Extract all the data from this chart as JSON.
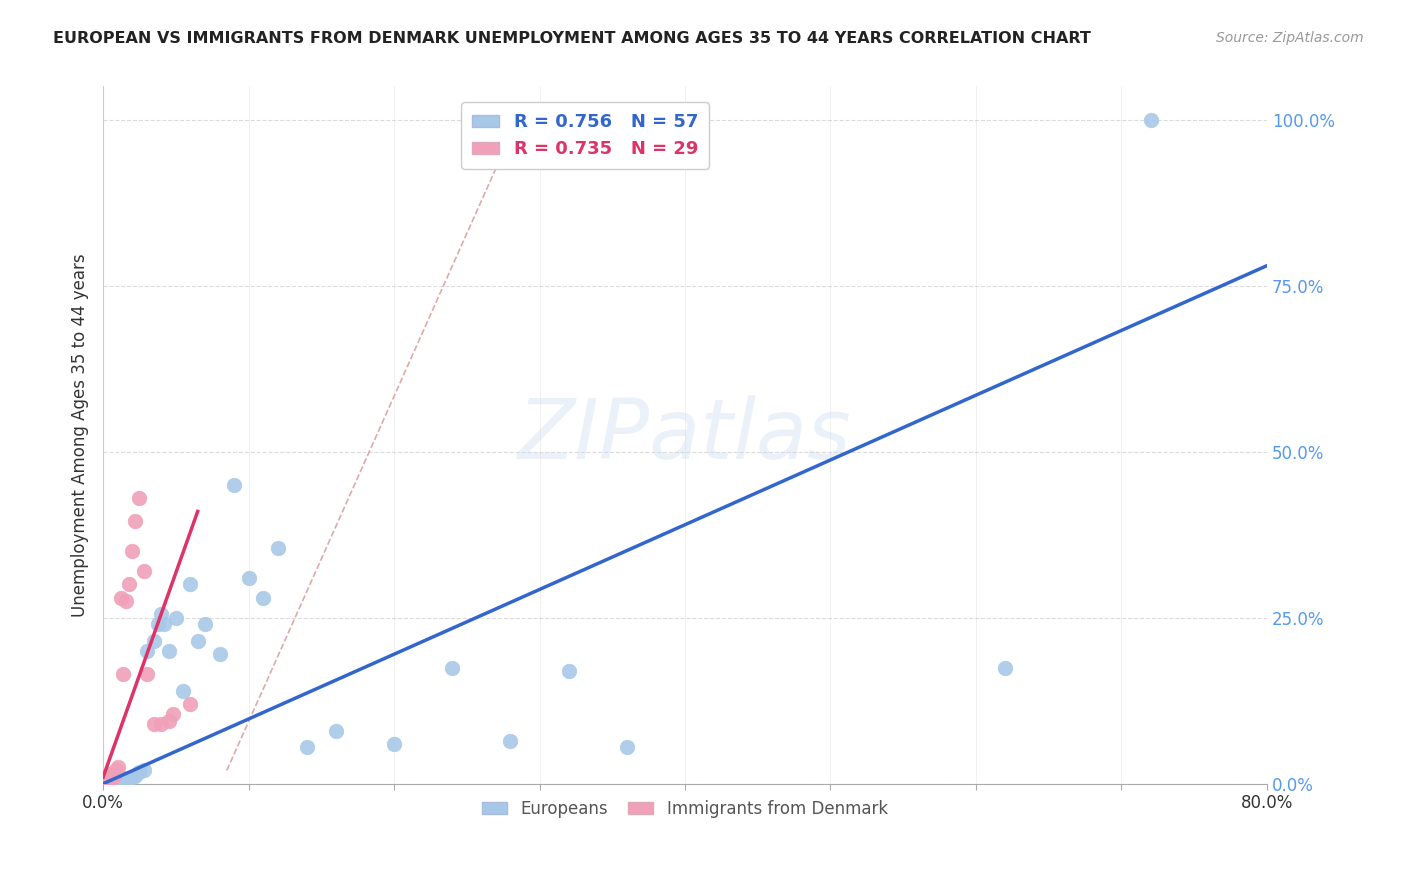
{
  "title": "EUROPEAN VS IMMIGRANTS FROM DENMARK UNEMPLOYMENT AMONG AGES 35 TO 44 YEARS CORRELATION CHART",
  "source": "Source: ZipAtlas.com",
  "ylabel": "Unemployment Among Ages 35 to 44 years",
  "watermark": "ZIPatlas",
  "legend_blue_R": "R = 0.756",
  "legend_blue_N": "N = 57",
  "legend_pink_R": "R = 0.735",
  "legend_pink_N": "N = 29",
  "xlim": [
    0.0,
    0.8
  ],
  "ylim": [
    0.0,
    1.05
  ],
  "yticks": [
    0.0,
    0.25,
    0.5,
    0.75,
    1.0
  ],
  "ytick_labels": [
    "0.0%",
    "25.0%",
    "50.0%",
    "75.0%",
    "100.0%"
  ],
  "blue_scatter_x": [
    0.001,
    0.002,
    0.002,
    0.003,
    0.003,
    0.003,
    0.004,
    0.004,
    0.004,
    0.005,
    0.005,
    0.005,
    0.006,
    0.006,
    0.007,
    0.007,
    0.008,
    0.008,
    0.009,
    0.01,
    0.01,
    0.011,
    0.012,
    0.013,
    0.014,
    0.015,
    0.016,
    0.018,
    0.02,
    0.022,
    0.025,
    0.028,
    0.03,
    0.035,
    0.038,
    0.04,
    0.042,
    0.045,
    0.05,
    0.055,
    0.06,
    0.065,
    0.07,
    0.08,
    0.09,
    0.1,
    0.11,
    0.12,
    0.14,
    0.16,
    0.2,
    0.24,
    0.28,
    0.32,
    0.36,
    0.62,
    0.72
  ],
  "blue_scatter_y": [
    0.005,
    0.004,
    0.006,
    0.003,
    0.005,
    0.007,
    0.004,
    0.006,
    0.008,
    0.003,
    0.005,
    0.007,
    0.004,
    0.006,
    0.004,
    0.006,
    0.005,
    0.007,
    0.005,
    0.004,
    0.006,
    0.006,
    0.007,
    0.006,
    0.008,
    0.007,
    0.005,
    0.008,
    0.01,
    0.012,
    0.018,
    0.02,
    0.2,
    0.215,
    0.24,
    0.255,
    0.24,
    0.2,
    0.25,
    0.14,
    0.3,
    0.215,
    0.24,
    0.195,
    0.45,
    0.31,
    0.28,
    0.355,
    0.055,
    0.08,
    0.06,
    0.175,
    0.065,
    0.17,
    0.055,
    0.175,
    1.0
  ],
  "pink_scatter_x": [
    0.001,
    0.002,
    0.002,
    0.003,
    0.003,
    0.004,
    0.004,
    0.005,
    0.005,
    0.006,
    0.006,
    0.007,
    0.008,
    0.009,
    0.01,
    0.012,
    0.014,
    0.016,
    0.018,
    0.02,
    0.022,
    0.025,
    0.028,
    0.03,
    0.035,
    0.04,
    0.045,
    0.048,
    0.06
  ],
  "pink_scatter_y": [
    0.005,
    0.006,
    0.01,
    0.007,
    0.012,
    0.005,
    0.01,
    0.008,
    0.014,
    0.008,
    0.015,
    0.01,
    0.015,
    0.02,
    0.025,
    0.28,
    0.165,
    0.275,
    0.3,
    0.35,
    0.395,
    0.43,
    0.32,
    0.165,
    0.09,
    0.09,
    0.095,
    0.105,
    0.12
  ],
  "blue_color": "#a8c8e8",
  "pink_color": "#f0a0b8",
  "blue_line_color": "#3366cc",
  "pink_line_color": "#dd3366",
  "ref_line_color": "#ddaaaa",
  "background_color": "#ffffff",
  "grid_color": "#cccccc",
  "blue_line_x": [
    0.0,
    0.8
  ],
  "blue_line_y": [
    0.0,
    0.78
  ],
  "pink_line_x": [
    0.0,
    0.065
  ],
  "pink_line_y": [
    0.01,
    0.41
  ],
  "ref_line_x": [
    0.085,
    0.285
  ],
  "ref_line_y": [
    0.02,
    1.0
  ]
}
